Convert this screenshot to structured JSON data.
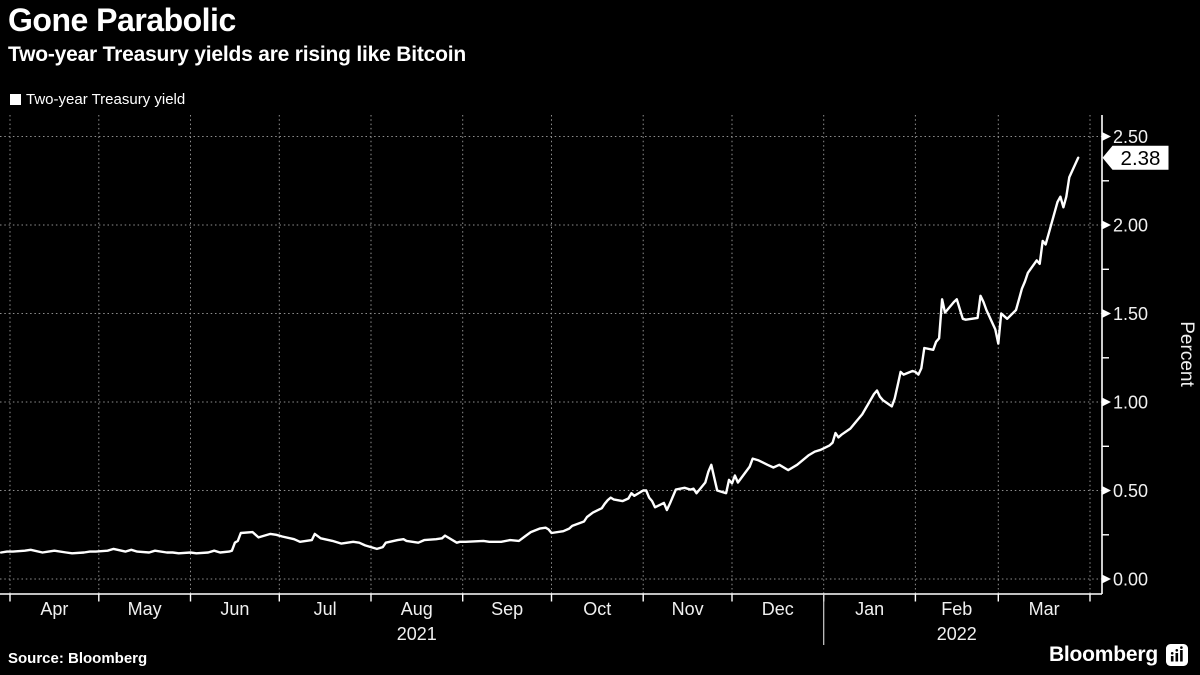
{
  "header": {
    "title": "Gone Parabolic",
    "subtitle": "Two-year Treasury yields are rising like Bitcoin"
  },
  "legend": {
    "label": "Two-year Treasury yield",
    "marker": "square",
    "marker_color": "#ffffff"
  },
  "footer": {
    "source": "Source: Bloomberg",
    "brand": "Bloomberg",
    "brand_icon": "bar-chart-icon"
  },
  "colors": {
    "background": "#000000",
    "line": "#ffffff",
    "grid": "#8f8f8f",
    "axis": "#ffffff",
    "text": "#f0f0f0",
    "badge_bg": "#ffffff",
    "badge_text": "#000000"
  },
  "chart_data": {
    "type": "line",
    "title": "Gone Parabolic",
    "subtitle": "Two-year Treasury yields are rising like Bitcoin",
    "xlabel": "",
    "ylabel": "Percent",
    "x_range": [
      "2021-03-29",
      "2022-03-28"
    ],
    "ylim": [
      0,
      2.62
    ],
    "grid": "dotted",
    "legend_position": "top-left",
    "y_ticks": [
      0,
      0.5,
      1,
      1.5,
      2,
      2.5
    ],
    "y_tick_labels": [
      "0.00",
      "0.50",
      "1.00",
      "1.50",
      "2.00",
      "2.50"
    ],
    "y_minor_ticks": [
      0.25,
      0.75,
      1.25,
      1.75,
      2.25
    ],
    "x_month_ticks": [
      "Apr",
      "May",
      "Jun",
      "Jul",
      "Aug",
      "Sep",
      "Oct",
      "Nov",
      "Dec",
      "Jan",
      "Feb",
      "Mar"
    ],
    "year_labels": [
      "2021",
      "2022"
    ],
    "last_value": 2.38,
    "last_value_label": "2.38",
    "series": [
      {
        "name": "Two-year Treasury yield",
        "color": "#ffffff",
        "points": [
          [
            "2021-03-29",
            0.15
          ],
          [
            "2021-03-31",
            0.155
          ],
          [
            "2021-04-02",
            0.155
          ],
          [
            "2021-04-06",
            0.16
          ],
          [
            "2021-04-08",
            0.165
          ],
          [
            "2021-04-12",
            0.15
          ],
          [
            "2021-04-14",
            0.155
          ],
          [
            "2021-04-16",
            0.16
          ],
          [
            "2021-04-20",
            0.15
          ],
          [
            "2021-04-22",
            0.145
          ],
          [
            "2021-04-26",
            0.15
          ],
          [
            "2021-04-28",
            0.155
          ],
          [
            "2021-04-30",
            0.155
          ],
          [
            "2021-05-04",
            0.16
          ],
          [
            "2021-05-06",
            0.17
          ],
          [
            "2021-05-10",
            0.155
          ],
          [
            "2021-05-12",
            0.165
          ],
          [
            "2021-05-14",
            0.155
          ],
          [
            "2021-05-18",
            0.15
          ],
          [
            "2021-05-20",
            0.16
          ],
          [
            "2021-05-24",
            0.15
          ],
          [
            "2021-05-26",
            0.15
          ],
          [
            "2021-05-28",
            0.145
          ],
          [
            "2021-06-01",
            0.15
          ],
          [
            "2021-06-03",
            0.145
          ],
          [
            "2021-06-07",
            0.15
          ],
          [
            "2021-06-09",
            0.16
          ],
          [
            "2021-06-11",
            0.15
          ],
          [
            "2021-06-14",
            0.155
          ],
          [
            "2021-06-15",
            0.16
          ],
          [
            "2021-06-16",
            0.205
          ],
          [
            "2021-06-17",
            0.215
          ],
          [
            "2021-06-18",
            0.26
          ],
          [
            "2021-06-22",
            0.265
          ],
          [
            "2021-06-24",
            0.235
          ],
          [
            "2021-06-28",
            0.255
          ],
          [
            "2021-06-30",
            0.25
          ],
          [
            "2021-07-02",
            0.24
          ],
          [
            "2021-07-06",
            0.225
          ],
          [
            "2021-07-08",
            0.21
          ],
          [
            "2021-07-12",
            0.22
          ],
          [
            "2021-07-13",
            0.255
          ],
          [
            "2021-07-15",
            0.23
          ],
          [
            "2021-07-19",
            0.215
          ],
          [
            "2021-07-22",
            0.2
          ],
          [
            "2021-07-26",
            0.21
          ],
          [
            "2021-07-28",
            0.205
          ],
          [
            "2021-07-30",
            0.19
          ],
          [
            "2021-08-03",
            0.17
          ],
          [
            "2021-08-05",
            0.18
          ],
          [
            "2021-08-06",
            0.205
          ],
          [
            "2021-08-10",
            0.22
          ],
          [
            "2021-08-12",
            0.225
          ],
          [
            "2021-08-13",
            0.215
          ],
          [
            "2021-08-17",
            0.205
          ],
          [
            "2021-08-19",
            0.22
          ],
          [
            "2021-08-23",
            0.225
          ],
          [
            "2021-08-25",
            0.23
          ],
          [
            "2021-08-26",
            0.245
          ],
          [
            "2021-08-30",
            0.205
          ],
          [
            "2021-08-31",
            0.21
          ],
          [
            "2021-09-02",
            0.21
          ],
          [
            "2021-09-08",
            0.215
          ],
          [
            "2021-09-10",
            0.21
          ],
          [
            "2021-09-14",
            0.21
          ],
          [
            "2021-09-17",
            0.22
          ],
          [
            "2021-09-20",
            0.215
          ],
          [
            "2021-09-22",
            0.24
          ],
          [
            "2021-09-24",
            0.265
          ],
          [
            "2021-09-27",
            0.285
          ],
          [
            "2021-09-29",
            0.29
          ],
          [
            "2021-09-30",
            0.28
          ],
          [
            "2021-10-01",
            0.26
          ],
          [
            "2021-10-05",
            0.27
          ],
          [
            "2021-10-07",
            0.285
          ],
          [
            "2021-10-08",
            0.3
          ],
          [
            "2021-10-12",
            0.325
          ],
          [
            "2021-10-13",
            0.35
          ],
          [
            "2021-10-15",
            0.375
          ],
          [
            "2021-10-18",
            0.4
          ],
          [
            "2021-10-19",
            0.425
          ],
          [
            "2021-10-20",
            0.445
          ],
          [
            "2021-10-21",
            0.46
          ],
          [
            "2021-10-22",
            0.45
          ],
          [
            "2021-10-25",
            0.44
          ],
          [
            "2021-10-27",
            0.455
          ],
          [
            "2021-10-28",
            0.485
          ],
          [
            "2021-10-29",
            0.47
          ],
          [
            "2021-11-01",
            0.5
          ],
          [
            "2021-11-02",
            0.5
          ],
          [
            "2021-11-03",
            0.46
          ],
          [
            "2021-11-04",
            0.44
          ],
          [
            "2021-11-05",
            0.405
          ],
          [
            "2021-11-08",
            0.43
          ],
          [
            "2021-11-09",
            0.39
          ],
          [
            "2021-11-10",
            0.425
          ],
          [
            "2021-11-12",
            0.505
          ],
          [
            "2021-11-15",
            0.515
          ],
          [
            "2021-11-17",
            0.505
          ],
          [
            "2021-11-18",
            0.51
          ],
          [
            "2021-11-19",
            0.485
          ],
          [
            "2021-11-22",
            0.545
          ],
          [
            "2021-11-23",
            0.605
          ],
          [
            "2021-11-24",
            0.645
          ],
          [
            "2021-11-26",
            0.5
          ],
          [
            "2021-11-29",
            0.485
          ],
          [
            "2021-11-30",
            0.56
          ],
          [
            "2021-12-01",
            0.54
          ],
          [
            "2021-12-02",
            0.585
          ],
          [
            "2021-12-03",
            0.545
          ],
          [
            "2021-12-07",
            0.635
          ],
          [
            "2021-12-08",
            0.68
          ],
          [
            "2021-12-10",
            0.67
          ],
          [
            "2021-12-13",
            0.645
          ],
          [
            "2021-12-15",
            0.63
          ],
          [
            "2021-12-17",
            0.645
          ],
          [
            "2021-12-20",
            0.615
          ],
          [
            "2021-12-23",
            0.645
          ],
          [
            "2021-12-27",
            0.7
          ],
          [
            "2021-12-29",
            0.72
          ],
          [
            "2021-12-31",
            0.73
          ],
          [
            "2022-01-03",
            0.755
          ],
          [
            "2022-01-04",
            0.77
          ],
          [
            "2022-01-05",
            0.825
          ],
          [
            "2022-01-06",
            0.8
          ],
          [
            "2022-01-07",
            0.815
          ],
          [
            "2022-01-10",
            0.85
          ],
          [
            "2022-01-12",
            0.89
          ],
          [
            "2022-01-14",
            0.93
          ],
          [
            "2022-01-18",
            1.045
          ],
          [
            "2022-01-19",
            1.065
          ],
          [
            "2022-01-20",
            1.03
          ],
          [
            "2022-01-21",
            1.01
          ],
          [
            "2022-01-24",
            0.975
          ],
          [
            "2022-01-25",
            1.02
          ],
          [
            "2022-01-26",
            1.095
          ],
          [
            "2022-01-27",
            1.17
          ],
          [
            "2022-01-28",
            1.155
          ],
          [
            "2022-01-31",
            1.175
          ],
          [
            "2022-02-01",
            1.17
          ],
          [
            "2022-02-02",
            1.155
          ],
          [
            "2022-02-03",
            1.19
          ],
          [
            "2022-02-04",
            1.305
          ],
          [
            "2022-02-07",
            1.295
          ],
          [
            "2022-02-08",
            1.34
          ],
          [
            "2022-02-09",
            1.36
          ],
          [
            "2022-02-10",
            1.58
          ],
          [
            "2022-02-11",
            1.505
          ],
          [
            "2022-02-14",
            1.565
          ],
          [
            "2022-02-15",
            1.58
          ],
          [
            "2022-02-16",
            1.525
          ],
          [
            "2022-02-17",
            1.47
          ],
          [
            "2022-02-18",
            1.465
          ],
          [
            "2022-02-22",
            1.475
          ],
          [
            "2022-02-23",
            1.6
          ],
          [
            "2022-02-24",
            1.565
          ],
          [
            "2022-02-25",
            1.52
          ],
          [
            "2022-02-28",
            1.41
          ],
          [
            "2022-03-01",
            1.33
          ],
          [
            "2022-03-02",
            1.5
          ],
          [
            "2022-03-03",
            1.485
          ],
          [
            "2022-03-04",
            1.47
          ],
          [
            "2022-03-07",
            1.52
          ],
          [
            "2022-03-08",
            1.58
          ],
          [
            "2022-03-09",
            1.64
          ],
          [
            "2022-03-10",
            1.68
          ],
          [
            "2022-03-11",
            1.73
          ],
          [
            "2022-03-14",
            1.8
          ],
          [
            "2022-03-15",
            1.78
          ],
          [
            "2022-03-16",
            1.91
          ],
          [
            "2022-03-17",
            1.89
          ],
          [
            "2022-03-18",
            1.95
          ],
          [
            "2022-03-21",
            2.13
          ],
          [
            "2022-03-22",
            2.16
          ],
          [
            "2022-03-23",
            2.1
          ],
          [
            "2022-03-24",
            2.16
          ],
          [
            "2022-03-25",
            2.27
          ],
          [
            "2022-03-28",
            2.38
          ]
        ]
      }
    ]
  }
}
